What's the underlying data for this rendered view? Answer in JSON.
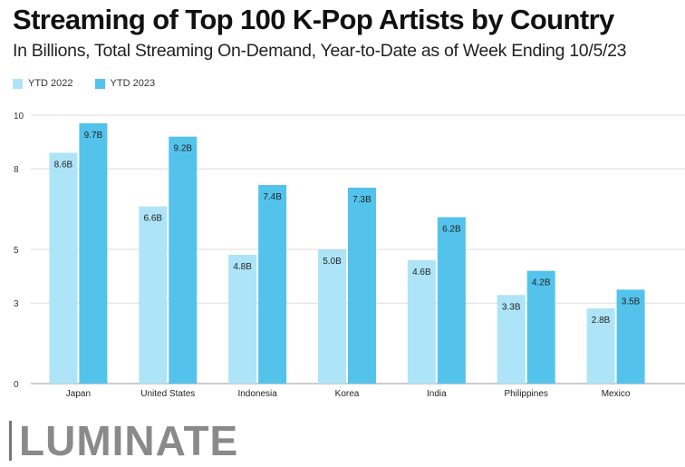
{
  "chart_data": {
    "type": "bar",
    "title": "Streaming of Top 100 K-Pop Artists by Country",
    "subtitle": "In Billions, Total Streaming On-Demand, Year-to-Date as of Week Ending 10/5/23",
    "categories": [
      "Japan",
      "United States",
      "Indonesia",
      "Korea",
      "India",
      "Philippines",
      "Mexico"
    ],
    "series": [
      {
        "name": "YTD 2022",
        "color": "#aee4f7",
        "values": [
          8.6,
          6.6,
          4.8,
          5.0,
          4.6,
          3.3,
          2.8
        ],
        "labels": [
          "8.6B",
          "6.6B",
          "4.8B",
          "5.0B",
          "4.6B",
          "3.3B",
          "2.8B"
        ]
      },
      {
        "name": "YTD 2023",
        "color": "#53c3ec",
        "values": [
          9.7,
          9.2,
          7.4,
          7.3,
          6.2,
          4.2,
          3.5
        ],
        "labels": [
          "9.7B",
          "9.2B",
          "7.4B",
          "7.3B",
          "6.2B",
          "4.2B",
          "3.5B"
        ]
      }
    ],
    "yticks": [
      0,
      3,
      5,
      8,
      10
    ],
    "ylim": [
      0,
      10
    ],
    "grid": true,
    "legend": "top-left"
  },
  "brand": {
    "name": "LUMINATE"
  }
}
